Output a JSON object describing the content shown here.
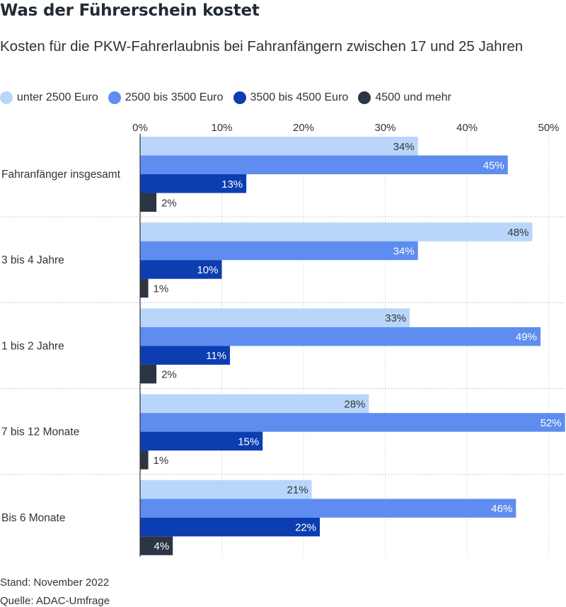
{
  "chart_data": {
    "type": "bar",
    "orientation": "horizontal",
    "title": "Was der Führerschein kostet",
    "subtitle": "Kosten für die PKW-Fahrerlaubnis bei Fahranfängern zwischen 17 und 25 Jahren",
    "categories": [
      "Fahranfänger insgesamt",
      "3 bis 4 Jahre",
      "1 bis 2 Jahre",
      "7 bis 12 Monate",
      "Bis 6 Monate"
    ],
    "series": [
      {
        "name": "unter 2500 Euro",
        "color": "#b9d6fa",
        "values": [
          34,
          48,
          33,
          28,
          21
        ]
      },
      {
        "name": "2500 bis 3500 Euro",
        "color": "#5e8def",
        "values": [
          45,
          34,
          49,
          52,
          46
        ]
      },
      {
        "name": "3500 bis 4500 Euro",
        "color": "#0c3eb1",
        "values": [
          13,
          10,
          11,
          15,
          22
        ]
      },
      {
        "name": "4500 und mehr",
        "color": "#2b3543",
        "values": [
          2,
          1,
          2,
          1,
          4
        ]
      }
    ],
    "value_suffix": "%",
    "xticks": [
      "0%",
      "10%",
      "20%",
      "30%",
      "40%",
      "50%"
    ],
    "xlim": [
      0,
      52
    ],
    "grid": true,
    "legend": "top-left"
  },
  "footer": {
    "stand": "Stand: November 2022",
    "source": "Quelle: ADAC-Umfrage"
  }
}
